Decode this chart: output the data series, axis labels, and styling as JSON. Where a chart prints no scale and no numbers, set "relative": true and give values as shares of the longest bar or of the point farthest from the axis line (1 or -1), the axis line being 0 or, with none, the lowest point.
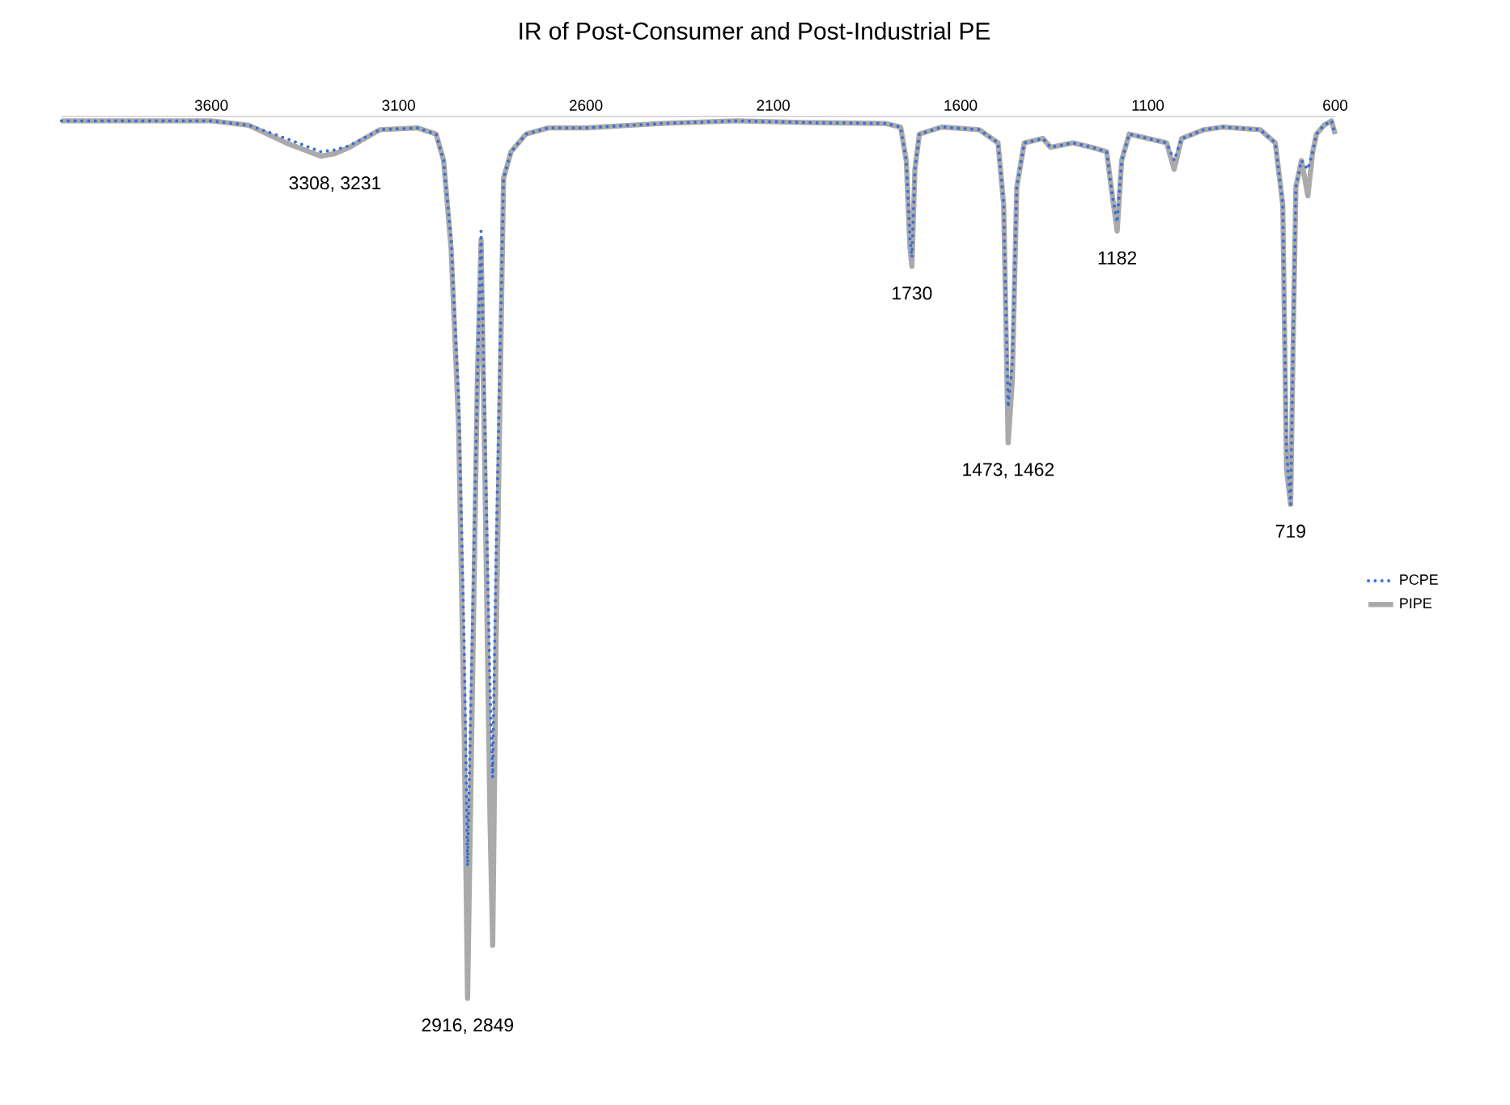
{
  "chart_data": {
    "type": "line",
    "title": "IR of Post-Consumer and Post-Industrial PE",
    "relative": true,
    "xlim": [
      4000,
      600
    ],
    "xticks": [
      3600,
      3100,
      2600,
      2100,
      1600,
      1100,
      600
    ],
    "tick_labels": "x",
    "legend": "right",
    "grid": false,
    "series": [
      {
        "name": "PCPE",
        "color": "#3a6fd8",
        "line_style": "dotted",
        "x": [
          4000,
          3800,
          3600,
          3500,
          3400,
          3308,
          3270,
          3231,
          3150,
          3050,
          3000,
          2980,
          2960,
          2940,
          2925,
          2916,
          2905,
          2890,
          2880,
          2870,
          2856,
          2849,
          2840,
          2820,
          2800,
          2760,
          2700,
          2600,
          2400,
          2200,
          2000,
          1800,
          1760,
          1745,
          1735,
          1730,
          1722,
          1710,
          1650,
          1550,
          1500,
          1485,
          1473,
          1462,
          1450,
          1430,
          1380,
          1360,
          1300,
          1250,
          1210,
          1195,
          1182,
          1170,
          1150,
          1100,
          1050,
          1030,
          1010,
          950,
          900,
          800,
          760,
          740,
          730,
          719,
          712,
          705,
          690,
          673,
          660,
          650,
          630,
          610,
          600
        ],
        "values": [
          -0.005,
          -0.005,
          -0.005,
          -0.01,
          -0.025,
          -0.04,
          -0.038,
          -0.033,
          -0.015,
          -0.013,
          -0.02,
          -0.05,
          -0.14,
          -0.32,
          -0.6,
          -0.85,
          -0.62,
          -0.3,
          -0.13,
          -0.35,
          -0.65,
          -0.75,
          -0.5,
          -0.07,
          -0.04,
          -0.02,
          -0.013,
          -0.013,
          -0.008,
          -0.005,
          -0.007,
          -0.008,
          -0.012,
          -0.05,
          -0.14,
          -0.16,
          -0.06,
          -0.02,
          -0.012,
          -0.015,
          -0.03,
          -0.1,
          -0.33,
          -0.28,
          -0.08,
          -0.03,
          -0.025,
          -0.035,
          -0.03,
          -0.035,
          -0.04,
          -0.09,
          -0.12,
          -0.05,
          -0.02,
          -0.025,
          -0.03,
          -0.05,
          -0.025,
          -0.015,
          -0.012,
          -0.015,
          -0.03,
          -0.1,
          -0.38,
          -0.44,
          -0.25,
          -0.08,
          -0.05,
          -0.06,
          -0.04,
          -0.02,
          -0.01,
          -0.005,
          -0.02
        ]
      },
      {
        "name": "PIPE",
        "color": "#aaaaaa",
        "line_style": "solid",
        "x": [
          4000,
          3800,
          3600,
          3500,
          3400,
          3308,
          3270,
          3231,
          3150,
          3050,
          3000,
          2980,
          2960,
          2940,
          2925,
          2916,
          2905,
          2890,
          2880,
          2870,
          2856,
          2849,
          2840,
          2820,
          2800,
          2760,
          2700,
          2600,
          2400,
          2200,
          2000,
          1800,
          1760,
          1745,
          1735,
          1730,
          1722,
          1710,
          1650,
          1550,
          1500,
          1485,
          1473,
          1462,
          1450,
          1430,
          1380,
          1360,
          1300,
          1250,
          1210,
          1195,
          1182,
          1170,
          1150,
          1100,
          1050,
          1030,
          1010,
          950,
          900,
          800,
          760,
          740,
          730,
          719,
          712,
          705,
          690,
          673,
          660,
          650,
          630,
          610,
          600
        ],
        "values": [
          -0.005,
          -0.005,
          -0.005,
          -0.01,
          -0.03,
          -0.045,
          -0.042,
          -0.035,
          -0.015,
          -0.013,
          -0.02,
          -0.05,
          -0.15,
          -0.35,
          -0.7,
          -1,
          -0.7,
          -0.3,
          -0.14,
          -0.4,
          -0.8,
          -0.94,
          -0.6,
          -0.07,
          -0.04,
          -0.02,
          -0.013,
          -0.013,
          -0.008,
          -0.005,
          -0.007,
          -0.008,
          -0.012,
          -0.05,
          -0.15,
          -0.17,
          -0.06,
          -0.02,
          -0.012,
          -0.015,
          -0.03,
          -0.1,
          -0.37,
          -0.3,
          -0.08,
          -0.03,
          -0.025,
          -0.035,
          -0.03,
          -0.035,
          -0.04,
          -0.09,
          -0.13,
          -0.05,
          -0.02,
          -0.025,
          -0.03,
          -0.06,
          -0.025,
          -0.015,
          -0.012,
          -0.015,
          -0.03,
          -0.1,
          -0.4,
          -0.44,
          -0.25,
          -0.08,
          -0.05,
          -0.09,
          -0.04,
          -0.02,
          -0.01,
          -0.005,
          -0.02
        ]
      }
    ],
    "annotations": [
      {
        "text": "3308, 3231",
        "x": 3270,
        "y": -0.045
      },
      {
        "text": "2916, 2849",
        "x": 2916,
        "y": -1
      },
      {
        "text": "1730",
        "x": 1730,
        "y": -0.17
      },
      {
        "text": "1473, 1462",
        "x": 1473,
        "y": -0.37
      },
      {
        "text": "1182",
        "x": 1182,
        "y": -0.13
      },
      {
        "text": "719",
        "x": 719,
        "y": -0.44
      }
    ]
  }
}
